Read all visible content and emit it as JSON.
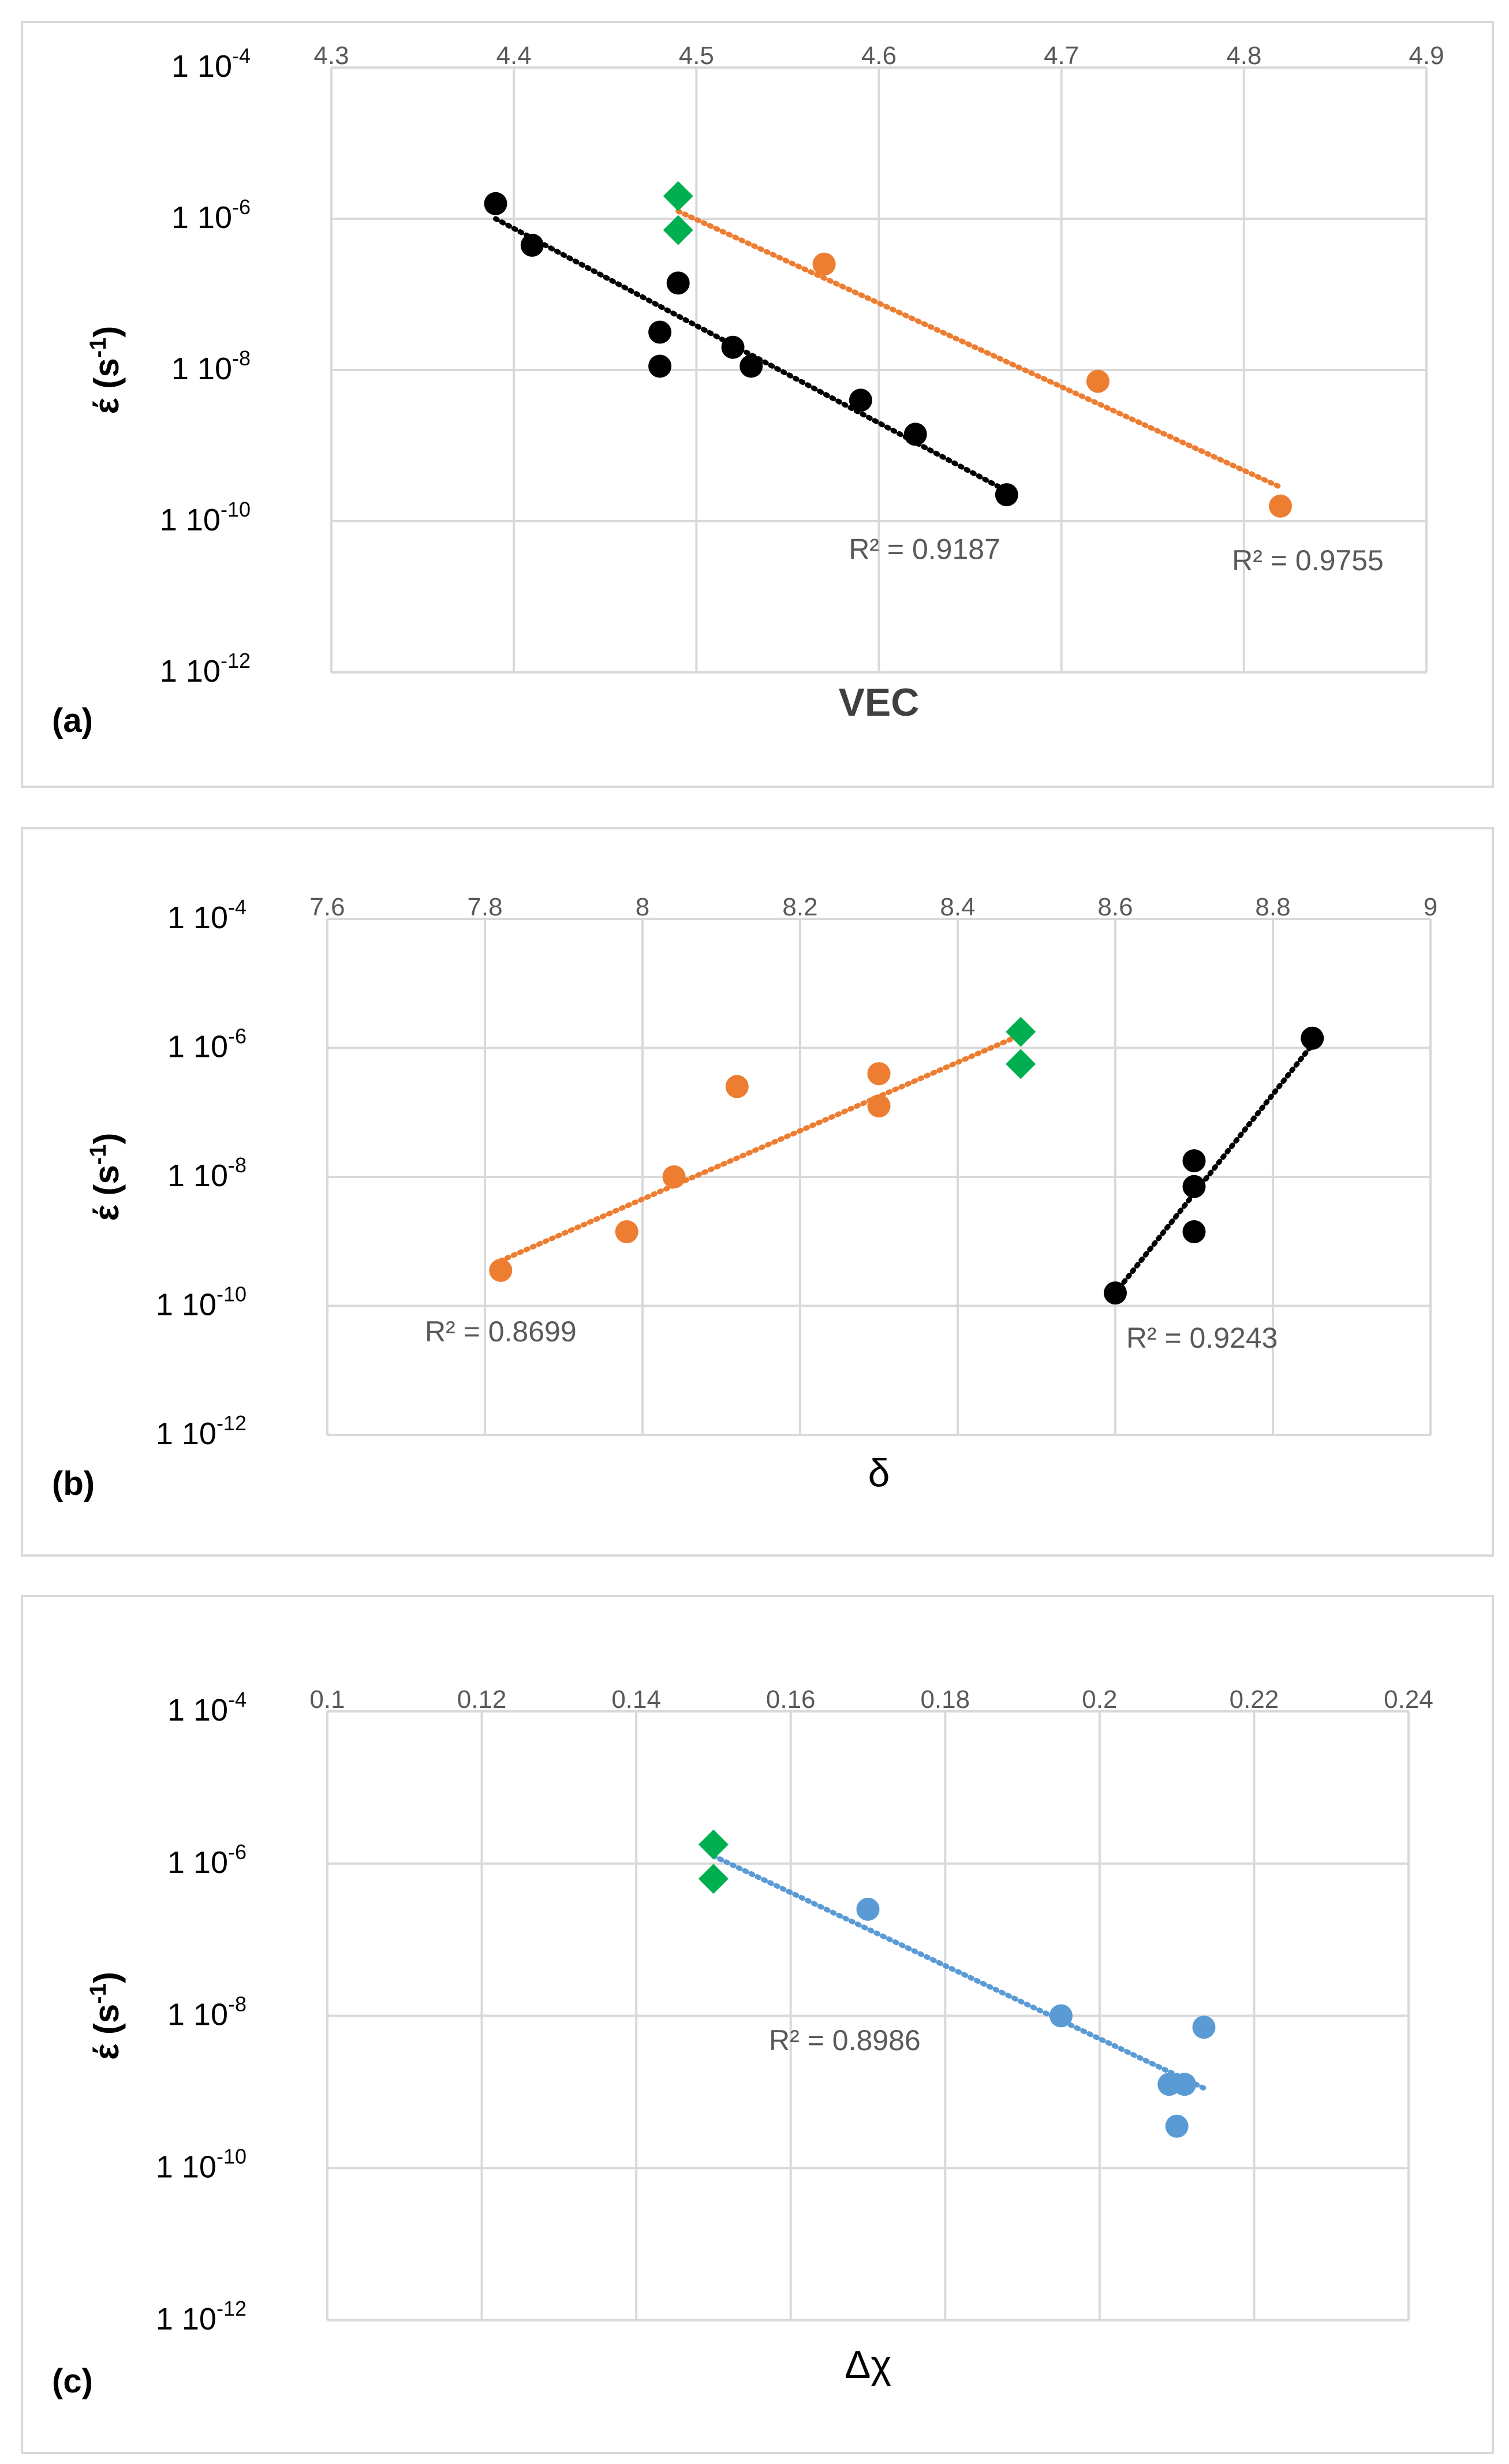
{
  "colors": {
    "black_series": "#000000",
    "orange_series": "#ED7D31",
    "green_series": "#00B050",
    "blue_series": "#5B9BD5",
    "grid": "#D9D9D9",
    "frame": "#D9D9D9",
    "tick_text": "#595959",
    "label_text": "#404040"
  },
  "chart_data": [
    {
      "type": "scatter",
      "panel_label": "(a)",
      "xlabel": "VEC",
      "ylabel": "έ (s",
      "ylabel_sup": "-1",
      "ylabel_close": ")",
      "xlim": [
        4.3,
        4.9
      ],
      "xticks": [
        "4.3",
        "4.4",
        "4.5",
        "4.6",
        "4.7",
        "4.8",
        "4.9"
      ],
      "ylim_log10": [
        -12,
        -4
      ],
      "yticks": [
        {
          "exp": -4,
          "base": "1 10",
          "sup": "-4"
        },
        {
          "exp": -6,
          "base": "1 10",
          "sup": "-6"
        },
        {
          "exp": -8,
          "base": "1 10",
          "sup": "-8"
        },
        {
          "exp": -10,
          "base": "1 10",
          "sup": "-10"
        },
        {
          "exp": -12,
          "base": "1 10",
          "sup": "-12"
        }
      ],
      "series": [
        {
          "name": "black",
          "marker": "circle",
          "color": "black_series",
          "points": [
            [
              4.39,
              -5.8
            ],
            [
              4.41,
              -6.35
            ],
            [
              4.48,
              -7.5
            ],
            [
              4.48,
              -7.95
            ],
            [
              4.49,
              -6.85
            ],
            [
              4.52,
              -7.7
            ],
            [
              4.53,
              -7.95
            ],
            [
              4.59,
              -8.4
            ],
            [
              4.62,
              -8.85
            ],
            [
              4.67,
              -9.65
            ]
          ],
          "trend": [
            [
              4.39,
              -6.0
            ],
            [
              4.67,
              -9.6
            ]
          ],
          "r2": "R² = 0.9187",
          "r2_at": [
            4.625,
            -10.5
          ]
        },
        {
          "name": "orange",
          "marker": "circle",
          "color": "orange_series",
          "points": [
            [
              4.57,
              -6.6
            ],
            [
              4.72,
              -8.15
            ],
            [
              4.82,
              -9.8
            ]
          ],
          "trend": [
            [
              4.49,
              -5.9
            ],
            [
              4.82,
              -9.55
            ]
          ],
          "r2": "R² = 0.9755",
          "r2_at": [
            4.835,
            -10.65
          ]
        },
        {
          "name": "green",
          "marker": "diamond",
          "color": "green_series",
          "points": [
            [
              4.49,
              -5.7
            ],
            [
              4.49,
              -6.15
            ]
          ]
        }
      ]
    },
    {
      "type": "scatter",
      "panel_label": "(b)",
      "xlabel": "δ",
      "ylabel": "έ (s",
      "ylabel_sup": "-1",
      "ylabel_close": ")",
      "xlim": [
        7.6,
        9.0
      ],
      "xticks": [
        "7.6",
        "7.8",
        "8",
        "8.2",
        "8.4",
        "8.6",
        "8.8",
        "9"
      ],
      "ylim_log10": [
        -12,
        -4
      ],
      "yticks": [
        {
          "exp": -4,
          "base": "1 10",
          "sup": "-4"
        },
        {
          "exp": -6,
          "base": "1 10",
          "sup": "-6"
        },
        {
          "exp": -8,
          "base": "1 10",
          "sup": "-8"
        },
        {
          "exp": -10,
          "base": "1 10",
          "sup": "-10"
        },
        {
          "exp": -12,
          "base": "1 10",
          "sup": "-12"
        }
      ],
      "series": [
        {
          "name": "orange",
          "marker": "circle",
          "color": "orange_series",
          "points": [
            [
              7.82,
              -9.45
            ],
            [
              7.98,
              -8.85
            ],
            [
              8.04,
              -8.0
            ],
            [
              8.12,
              -6.6
            ],
            [
              8.3,
              -6.4
            ],
            [
              8.3,
              -6.9
            ]
          ],
          "trend": [
            [
              7.82,
              -9.3
            ],
            [
              8.48,
              -5.8
            ]
          ],
          "r2": "R² = 0.8699",
          "r2_at": [
            7.82,
            -10.55
          ]
        },
        {
          "name": "black",
          "marker": "circle",
          "color": "black_series",
          "points": [
            [
              8.6,
              -9.8
            ],
            [
              8.7,
              -8.85
            ],
            [
              8.7,
              -8.15
            ],
            [
              8.7,
              -7.75
            ],
            [
              8.85,
              -5.85
            ]
          ],
          "trend": [
            [
              8.6,
              -9.8
            ],
            [
              8.85,
              -5.95
            ]
          ],
          "r2": "R² = 0.9243",
          "r2_at": [
            8.71,
            -10.65
          ]
        },
        {
          "name": "green",
          "marker": "diamond",
          "color": "green_series",
          "points": [
            [
              8.48,
              -5.75
            ],
            [
              8.48,
              -6.25
            ]
          ]
        }
      ]
    },
    {
      "type": "scatter",
      "panel_label": "(c)",
      "xlabel": "Δχ",
      "ylabel": "έ (s",
      "ylabel_sup": "-1",
      "ylabel_close": ")",
      "xlim": [
        0.1,
        0.24
      ],
      "xticks": [
        "0.1",
        "0.12",
        "0.14",
        "0.16",
        "0.18",
        "0.2",
        "0.22",
        "0.24"
      ],
      "ylim_log10": [
        -12,
        -4
      ],
      "yticks": [
        {
          "exp": -4,
          "base": "1 10",
          "sup": "-4"
        },
        {
          "exp": -6,
          "base": "1 10",
          "sup": "-6"
        },
        {
          "exp": -8,
          "base": "1 10",
          "sup": "-8"
        },
        {
          "exp": -10,
          "base": "1 10",
          "sup": "-10"
        },
        {
          "exp": -12,
          "base": "1 10",
          "sup": "-12"
        }
      ],
      "series": [
        {
          "name": "blue",
          "marker": "circle",
          "color": "blue_series",
          "points": [
            [
              0.17,
              -6.6
            ],
            [
              0.195,
              -8.0
            ],
            [
              0.209,
              -8.9
            ],
            [
              0.211,
              -8.9
            ],
            [
              0.21,
              -9.45
            ],
            [
              0.2135,
              -8.15
            ]
          ],
          "trend": [
            [
              0.15,
              -5.9
            ],
            [
              0.2135,
              -8.95
            ]
          ],
          "r2": "R² = 0.8986",
          "r2_at": [
            0.167,
            -8.45
          ]
        },
        {
          "name": "green",
          "marker": "diamond",
          "color": "green_series",
          "points": [
            [
              0.15,
              -5.75
            ],
            [
              0.15,
              -6.2
            ]
          ]
        }
      ]
    }
  ]
}
